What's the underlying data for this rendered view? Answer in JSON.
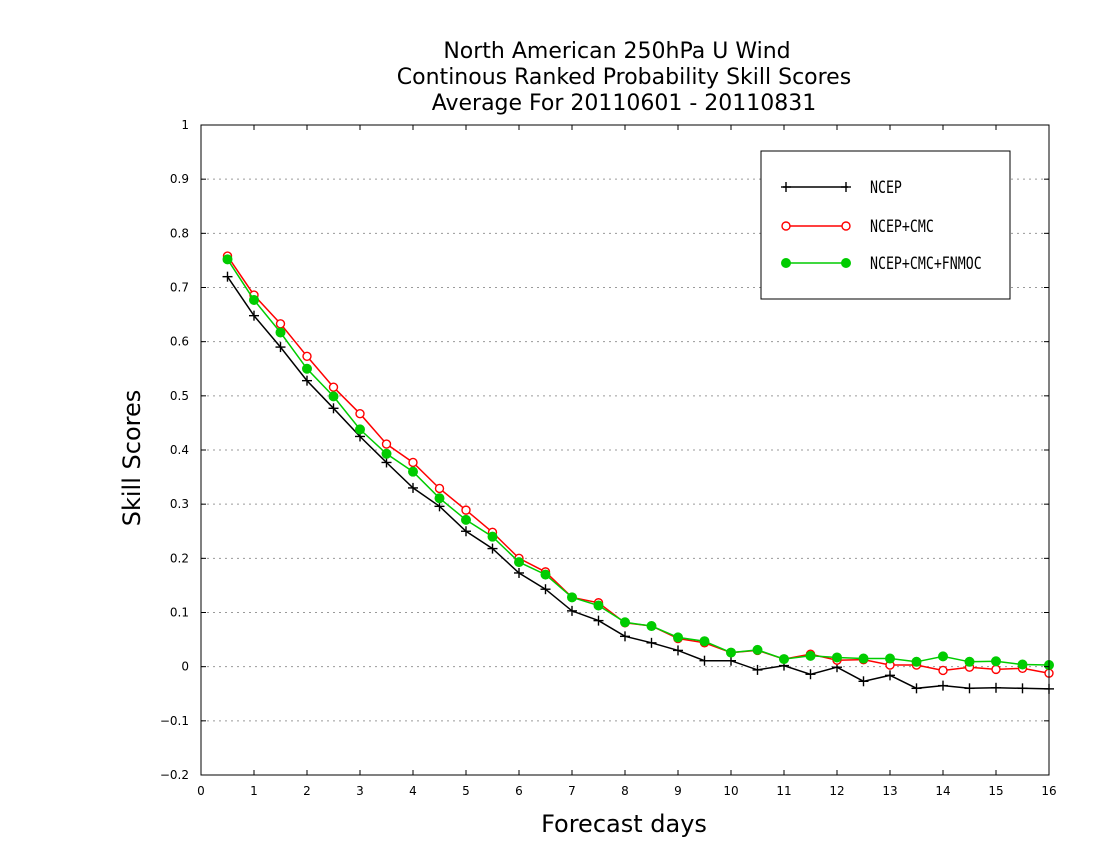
{
  "chart_data": {
    "type": "line",
    "title": [
      "North American 250hPa U Wind",
      "Continous Ranked Probability Skill Scores",
      "Average For 20110601 - 20110831"
    ],
    "xlabel": "Forecast days",
    "ylabel": "Skill Scores",
    "xlim": [
      0,
      16
    ],
    "ylim": [
      -0.2,
      1
    ],
    "xticks": [
      "0",
      "1",
      "2",
      "3",
      "4",
      "5",
      "6",
      "7",
      "8",
      "9",
      "10",
      "11",
      "12",
      "13",
      "14",
      "15",
      "16"
    ],
    "yticks": [
      "−0.2",
      "−0.1",
      "0",
      "0.1",
      "0.2",
      "0.3",
      "0.4",
      "0.5",
      "0.6",
      "0.7",
      "0.8",
      "0.9",
      "1"
    ],
    "grid": "horizontal dotted",
    "legend_position": "top-right",
    "x": [
      0.5,
      1,
      1.5,
      2,
      2.5,
      3,
      3.5,
      4,
      4.5,
      5,
      5.5,
      6,
      6.5,
      7,
      7.5,
      8,
      8.5,
      9,
      9.5,
      10,
      10.5,
      11,
      11.5,
      12,
      12.5,
      13,
      13.5,
      14,
      14.5,
      15,
      15.5,
      16
    ],
    "series": [
      {
        "name": "NCEP",
        "color": "#000000",
        "marker": "plus",
        "values": [
          0.72,
          0.648,
          0.59,
          0.528,
          0.477,
          0.425,
          0.377,
          0.33,
          0.296,
          0.25,
          0.218,
          0.173,
          0.143,
          0.103,
          0.085,
          0.056,
          0.044,
          0.03,
          0.011,
          0.011,
          -0.006,
          0.002,
          -0.014,
          -0.001,
          -0.027,
          -0.016,
          -0.04,
          -0.035,
          -0.04,
          -0.039,
          -0.04,
          -0.041
        ]
      },
      {
        "name": "NCEP+CMC",
        "color": "#ff0000",
        "marker": "open-circle",
        "values": [
          0.758,
          0.686,
          0.633,
          0.573,
          0.516,
          0.467,
          0.411,
          0.377,
          0.329,
          0.289,
          0.248,
          0.2,
          0.175,
          0.128,
          0.118,
          0.081,
          0.075,
          0.052,
          0.044,
          0.026,
          0.03,
          0.014,
          0.023,
          0.012,
          0.013,
          0.003,
          0.003,
          -0.007,
          -0.001,
          -0.005,
          -0.003,
          -0.012
        ]
      },
      {
        "name": "NCEP+CMC+FNMOC",
        "color": "#00cc00",
        "marker": "filled-circle",
        "values": [
          0.752,
          0.677,
          0.617,
          0.55,
          0.499,
          0.438,
          0.393,
          0.36,
          0.311,
          0.271,
          0.24,
          0.193,
          0.17,
          0.128,
          0.113,
          0.082,
          0.075,
          0.054,
          0.047,
          0.026,
          0.031,
          0.014,
          0.02,
          0.017,
          0.015,
          0.015,
          0.009,
          0.019,
          0.009,
          0.01,
          0.004,
          0.003
        ]
      }
    ]
  }
}
